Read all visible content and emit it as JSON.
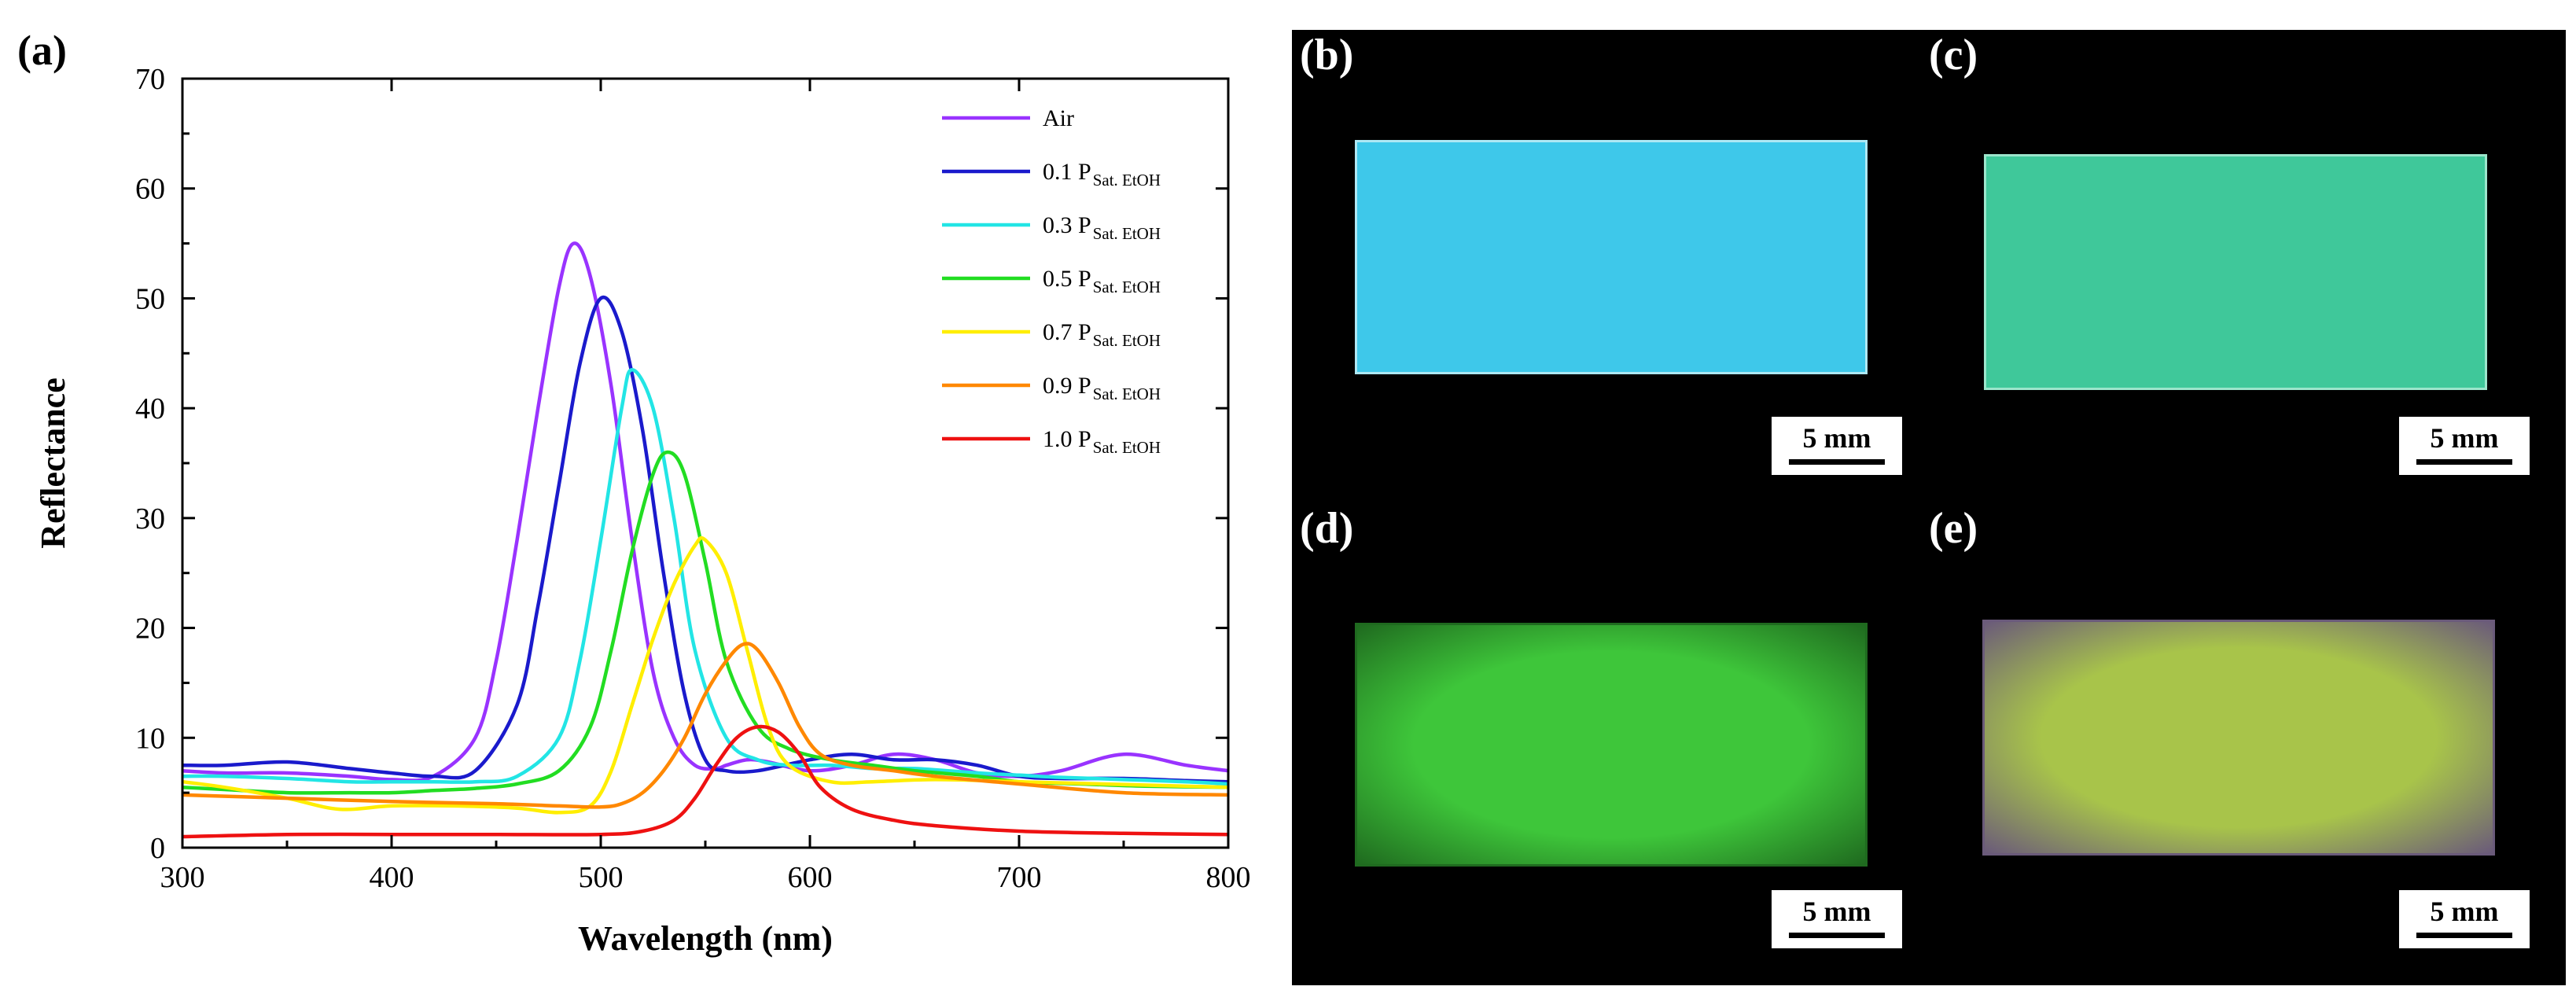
{
  "panel_labels": {
    "a": "(a)",
    "b": "(b)",
    "c": "(c)",
    "d": "(d)",
    "e": "(e)"
  },
  "chart_data": {
    "type": "line",
    "title": "",
    "xlabel": "Wavelength (nm)",
    "ylabel": "Reflectance",
    "xlim": [
      300,
      800
    ],
    "ylim": [
      0,
      70
    ],
    "xticks": [
      300,
      400,
      500,
      600,
      700,
      800
    ],
    "yticks": [
      0,
      10,
      20,
      30,
      40,
      50,
      60,
      70
    ],
    "grid": false,
    "legend_position": "top-right",
    "series": [
      {
        "name": "Air",
        "label_main": "Air",
        "label_sub": "",
        "color": "#9933ff",
        "x": [
          300,
          320,
          350,
          380,
          400,
          420,
          440,
          450,
          460,
          470,
          480,
          487,
          495,
          505,
          515,
          525,
          535,
          545,
          555,
          560,
          570,
          580,
          600,
          620,
          640,
          660,
          680,
          700,
          720,
          750,
          780,
          800
        ],
        "y": [
          7.0,
          6.8,
          6.8,
          6.5,
          6.2,
          6.5,
          10,
          17,
          28,
          40,
          51,
          55,
          52,
          42,
          28,
          16,
          10,
          7.5,
          7.2,
          7.5,
          8.0,
          7.8,
          7.0,
          7.5,
          8.5,
          8.0,
          6.8,
          6.5,
          7.0,
          8.5,
          7.5,
          7.0
        ]
      },
      {
        "name": "0.1 P Sat. EtOH",
        "label_main": "0.1 P",
        "label_sub": "Sat. EtOH",
        "color": "#1a1acc",
        "x": [
          300,
          320,
          350,
          380,
          400,
          420,
          440,
          460,
          470,
          480,
          490,
          500,
          510,
          520,
          530,
          540,
          550,
          560,
          575,
          600,
          620,
          640,
          660,
          680,
          700,
          720,
          750,
          780,
          800
        ],
        "y": [
          7.5,
          7.5,
          7.8,
          7.2,
          6.8,
          6.5,
          7.0,
          13,
          22,
          33,
          44,
          50,
          47,
          38,
          25,
          14,
          8.0,
          7.0,
          7.0,
          8.0,
          8.5,
          8.0,
          8.0,
          7.5,
          6.5,
          6.3,
          6.3,
          6.1,
          6.0
        ]
      },
      {
        "name": "0.3 P Sat. EtOH",
        "label_main": "0.3 P",
        "label_sub": "Sat. EtOH",
        "color": "#22e5e5",
        "x": [
          300,
          320,
          350,
          380,
          400,
          420,
          440,
          460,
          480,
          490,
          500,
          510,
          515,
          525,
          535,
          545,
          560,
          575,
          590,
          610,
          630,
          650,
          680,
          700,
          720,
          750,
          780,
          800
        ],
        "y": [
          6.5,
          6.5,
          6.3,
          6.0,
          6.0,
          6.0,
          6.0,
          6.5,
          10,
          17,
          28,
          40,
          43.5,
          40,
          30,
          18,
          10,
          8.0,
          7.5,
          7.5,
          7.2,
          7.2,
          6.8,
          6.6,
          6.4,
          6.2,
          6.0,
          5.8
        ]
      },
      {
        "name": "0.5 P Sat. EtOH",
        "label_main": "0.5 P",
        "label_sub": "Sat. EtOH",
        "color": "#22dd22",
        "x": [
          300,
          320,
          350,
          380,
          400,
          420,
          440,
          460,
          480,
          495,
          505,
          515,
          525,
          532,
          540,
          550,
          560,
          575,
          590,
          610,
          630,
          650,
          680,
          700,
          730,
          760,
          800
        ],
        "y": [
          5.5,
          5.3,
          5.0,
          5.0,
          5.0,
          5.2,
          5.4,
          5.8,
          7.0,
          11,
          18,
          27,
          34,
          36,
          34,
          26,
          17,
          11,
          9.0,
          8.0,
          7.5,
          7.0,
          6.5,
          6.0,
          5.8,
          5.6,
          5.5
        ]
      },
      {
        "name": "0.7 P Sat. EtOH",
        "label_main": "0.7 P",
        "label_sub": "Sat. EtOH",
        "color": "#ffee00",
        "x": [
          300,
          320,
          350,
          375,
          400,
          430,
          460,
          480,
          495,
          505,
          515,
          525,
          535,
          545,
          550,
          560,
          570,
          580,
          590,
          610,
          630,
          660,
          700,
          740,
          800
        ],
        "y": [
          6.0,
          5.5,
          4.5,
          3.5,
          3.8,
          3.8,
          3.6,
          3.2,
          3.8,
          7.0,
          13,
          19,
          24,
          27.5,
          28,
          25,
          18,
          11,
          7.5,
          6.0,
          6.0,
          6.2,
          6.0,
          5.8,
          5.5
        ]
      },
      {
        "name": "0.9 P Sat. EtOH",
        "label_main": "0.9 P",
        "label_sub": "Sat. EtOH",
        "color": "#ff8800",
        "x": [
          300,
          350,
          400,
          450,
          480,
          500,
          510,
          520,
          530,
          540,
          550,
          560,
          568,
          575,
          585,
          595,
          605,
          620,
          640,
          660,
          700,
          750,
          800
        ],
        "y": [
          4.8,
          4.5,
          4.2,
          4.0,
          3.8,
          3.7,
          4.0,
          5.0,
          7.0,
          10,
          14,
          17,
          18.5,
          18,
          15,
          11,
          8.5,
          7.5,
          7.0,
          6.5,
          5.8,
          5.0,
          4.8
        ]
      },
      {
        "name": "1.0 P Sat. EtOH",
        "label_main": "1.0 P",
        "label_sub": "Sat. EtOH",
        "color": "#ee1111",
        "x": [
          300,
          350,
          400,
          450,
          500,
          520,
          535,
          545,
          555,
          565,
          575,
          585,
          595,
          605,
          620,
          640,
          660,
          700,
          750,
          800
        ],
        "y": [
          1.0,
          1.2,
          1.2,
          1.2,
          1.2,
          1.5,
          2.5,
          4.5,
          7.5,
          10,
          11,
          10.5,
          8.5,
          5.5,
          3.5,
          2.5,
          2.0,
          1.5,
          1.3,
          1.2
        ]
      }
    ]
  },
  "photos": [
    {
      "id": "b",
      "color": "#3ec8ea",
      "edge": "#aee8f4",
      "scale_label": "5 mm"
    },
    {
      "id": "c",
      "color": "#3fc89a",
      "edge": "#9ce6cc",
      "scale_label": "5 mm"
    },
    {
      "id": "d",
      "color": "#3ec63a",
      "edge": "#1f6a1f",
      "scale_label": "5 mm"
    },
    {
      "id": "e",
      "color": "#a8c44a",
      "edge": "#6a5a7a",
      "scale_label": "5 mm"
    }
  ]
}
